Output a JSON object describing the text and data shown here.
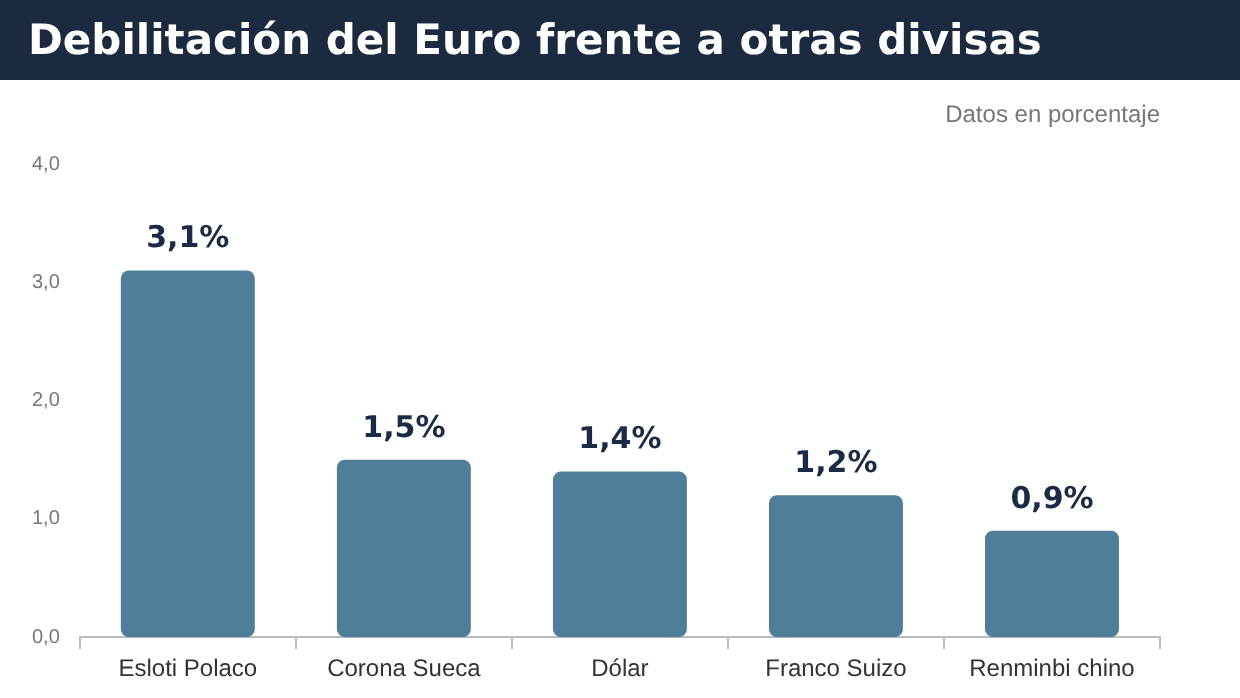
{
  "chart_data": {
    "type": "bar",
    "title": "Debilitación del Euro frente a otras divisas",
    "subtitle": "Datos en porcentaje",
    "categories": [
      "Esloti Polaco",
      "Corona Sueca",
      "Dólar",
      "Franco Suizo",
      "Renminbi chino"
    ],
    "values": [
      3.1,
      1.5,
      1.4,
      1.2,
      0.9
    ],
    "value_labels": [
      "3,1%",
      "1,5%",
      "1,4%",
      "1,2%",
      "0,9%"
    ],
    "color": "#4f7e99",
    "ylim": [
      0,
      4
    ],
    "yticks": [
      {
        "value": 0,
        "label": "0,0"
      },
      {
        "value": 1,
        "label": "1,0"
      },
      {
        "value": 2,
        "label": "2,0"
      },
      {
        "value": 3,
        "label": "3,0"
      },
      {
        "value": 4,
        "label": "4,0"
      }
    ],
    "grid": false,
    "legend": false
  }
}
